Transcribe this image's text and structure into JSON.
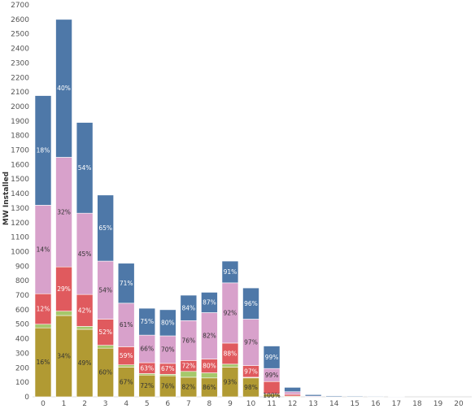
{
  "chart_data": {
    "type": "bar",
    "stacked": true,
    "title": "",
    "xlabel": "",
    "ylabel": "MW Installed",
    "ylim": [
      0,
      2700
    ],
    "yticks": [
      0,
      100,
      200,
      300,
      400,
      500,
      600,
      700,
      800,
      900,
      1000,
      1100,
      1200,
      1300,
      1400,
      1500,
      1600,
      1700,
      1800,
      1900,
      2000,
      2100,
      2200,
      2300,
      2400,
      2500,
      2600,
      2700
    ],
    "categories": [
      "0",
      "1",
      "2",
      "3",
      "4",
      "5",
      "6",
      "7",
      "8",
      "9",
      "10",
      "11",
      "12",
      "13",
      "14",
      "15",
      "16",
      "17",
      "18",
      "19",
      "20"
    ],
    "grid": false,
    "legend": "none",
    "series": [
      {
        "color": "#b19a33",
        "values": [
          475,
          560,
          465,
          335,
          205,
          150,
          145,
          135,
          130,
          205,
          130,
          20,
          5,
          0,
          0,
          0,
          0,
          0,
          0,
          0,
          0
        ]
      },
      {
        "color": "#a6c86b",
        "values": [
          25,
          30,
          20,
          20,
          15,
          10,
          10,
          40,
          35,
          20,
          5,
          0,
          0,
          0,
          0,
          0,
          0,
          0,
          0,
          0,
          0
        ]
      },
      {
        "color": "#e05a5e",
        "values": [
          210,
          305,
          220,
          180,
          125,
          75,
          75,
          75,
          95,
          145,
          80,
          85,
          12,
          0,
          0,
          0,
          0,
          0,
          0,
          0,
          0
        ]
      },
      {
        "color": "#d8a1cb",
        "values": [
          610,
          755,
          560,
          400,
          300,
          190,
          190,
          275,
          320,
          415,
          320,
          90,
          18,
          5,
          0,
          0,
          0,
          0,
          0,
          0,
          0
        ]
      },
      {
        "color": "#4e78a8",
        "values": [
          755,
          950,
          625,
          455,
          275,
          185,
          180,
          175,
          140,
          150,
          215,
          155,
          30,
          10,
          6,
          5,
          4,
          3,
          0,
          0,
          0
        ]
      }
    ],
    "segment_labels": [
      {
        "bar": 0,
        "series": 0,
        "text": "16%"
      },
      {
        "bar": 0,
        "series": 2,
        "text": "12%"
      },
      {
        "bar": 0,
        "series": 3,
        "text": "14%"
      },
      {
        "bar": 0,
        "series": 4,
        "text": "18%"
      },
      {
        "bar": 1,
        "series": 0,
        "text": "34%"
      },
      {
        "bar": 1,
        "series": 2,
        "text": "29%"
      },
      {
        "bar": 1,
        "series": 3,
        "text": "32%"
      },
      {
        "bar": 1,
        "series": 4,
        "text": "40%"
      },
      {
        "bar": 2,
        "series": 0,
        "text": "49%"
      },
      {
        "bar": 2,
        "series": 2,
        "text": "42%"
      },
      {
        "bar": 2,
        "series": 3,
        "text": "45%"
      },
      {
        "bar": 2,
        "series": 4,
        "text": "54%"
      },
      {
        "bar": 3,
        "series": 0,
        "text": "60%"
      },
      {
        "bar": 3,
        "series": 2,
        "text": "52%"
      },
      {
        "bar": 3,
        "series": 3,
        "text": "54%"
      },
      {
        "bar": 3,
        "series": 4,
        "text": "65%"
      },
      {
        "bar": 4,
        "series": 0,
        "text": "67%"
      },
      {
        "bar": 4,
        "series": 2,
        "text": "59%"
      },
      {
        "bar": 4,
        "series": 3,
        "text": "61%"
      },
      {
        "bar": 4,
        "series": 4,
        "text": "71%"
      },
      {
        "bar": 5,
        "series": 0,
        "text": "72%"
      },
      {
        "bar": 5,
        "series": 2,
        "text": "63%"
      },
      {
        "bar": 5,
        "series": 3,
        "text": "66%"
      },
      {
        "bar": 5,
        "series": 4,
        "text": "75%"
      },
      {
        "bar": 6,
        "series": 0,
        "text": "76%"
      },
      {
        "bar": 6,
        "series": 2,
        "text": "67%"
      },
      {
        "bar": 6,
        "series": 3,
        "text": "70%"
      },
      {
        "bar": 6,
        "series": 4,
        "text": "80%"
      },
      {
        "bar": 7,
        "series": 0,
        "text": "82%"
      },
      {
        "bar": 7,
        "series": 2,
        "text": "72%"
      },
      {
        "bar": 7,
        "series": 3,
        "text": "76%"
      },
      {
        "bar": 7,
        "series": 4,
        "text": "84%"
      },
      {
        "bar": 8,
        "series": 0,
        "text": "86%"
      },
      {
        "bar": 8,
        "series": 2,
        "text": "80%"
      },
      {
        "bar": 8,
        "series": 3,
        "text": "82%"
      },
      {
        "bar": 8,
        "series": 4,
        "text": "87%"
      },
      {
        "bar": 9,
        "series": 0,
        "text": "93%"
      },
      {
        "bar": 9,
        "series": 2,
        "text": "88%"
      },
      {
        "bar": 9,
        "series": 3,
        "text": "92%"
      },
      {
        "bar": 9,
        "series": 4,
        "text": "91%"
      },
      {
        "bar": 10,
        "series": 0,
        "text": "98%"
      },
      {
        "bar": 10,
        "series": 2,
        "text": "97%"
      },
      {
        "bar": 10,
        "series": 3,
        "text": "97%"
      },
      {
        "bar": 10,
        "series": 4,
        "text": "96%"
      },
      {
        "bar": 11,
        "series": 0,
        "text": "100%"
      },
      {
        "bar": 11,
        "series": 3,
        "text": "99%"
      },
      {
        "bar": 11,
        "series": 4,
        "text": "99%"
      }
    ]
  }
}
